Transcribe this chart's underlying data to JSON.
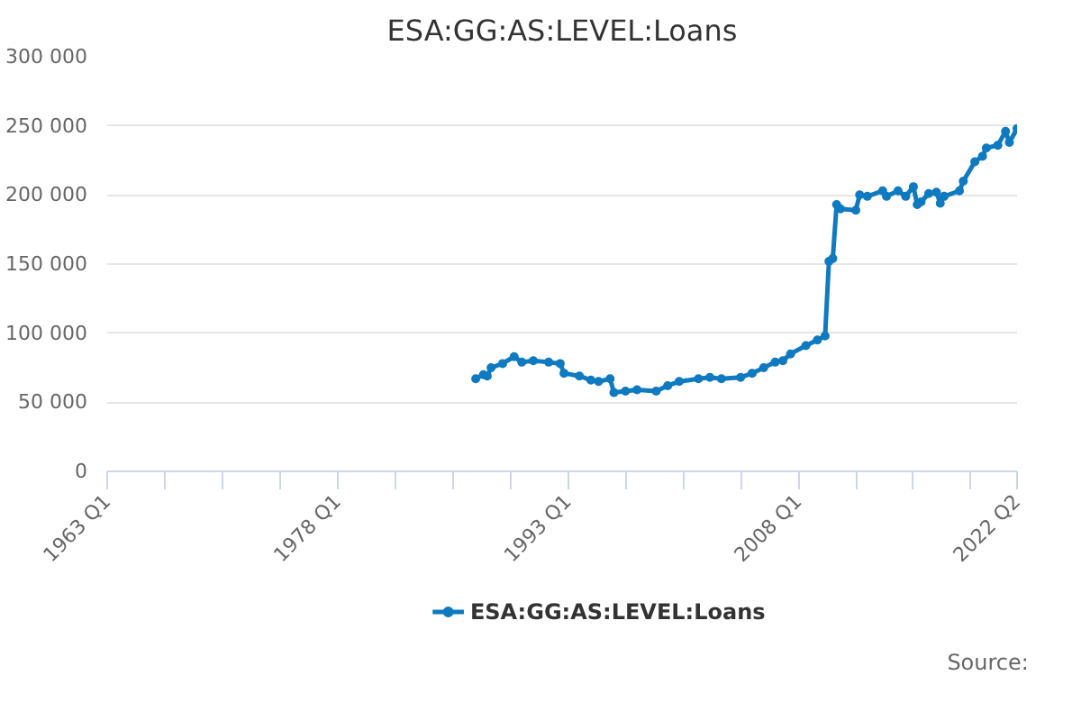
{
  "chart_data": {
    "type": "line",
    "title": "ESA:GG:AS:LEVEL:Loans",
    "x": [
      "1987-01",
      "1987-07",
      "1987-10",
      "1988-01",
      "1988-10",
      "1989-07",
      "1990-01",
      "1990-10",
      "1991-10",
      "1992-07",
      "1992-10",
      "1993-10",
      "1994-07",
      "1995-01",
      "1995-10",
      "1996-01",
      "1996-10",
      "1997-07",
      "1998-10",
      "1999-07",
      "2000-04",
      "2001-07",
      "2002-04",
      "2003-01",
      "2004-04",
      "2005-01",
      "2005-10",
      "2006-07",
      "2007-01",
      "2007-07",
      "2008-07",
      "2009-04",
      "2009-10",
      "2010-01",
      "2010-04",
      "2010-07",
      "2010-10",
      "2011-10",
      "2012-01",
      "2012-07",
      "2013-07",
      "2013-10",
      "2014-07",
      "2015-01",
      "2015-07",
      "2015-10",
      "2016-01",
      "2016-07",
      "2017-01",
      "2017-04",
      "2017-07",
      "2018-07",
      "2018-10",
      "2019-07",
      "2020-01",
      "2020-04",
      "2021-01",
      "2021-07",
      "2021-10",
      "2022-04"
    ],
    "series": [
      {
        "name": "ESA:GG:AS:LEVEL:Loans",
        "color": "#0f7ac0",
        "values": [
          67000,
          70000,
          69000,
          75000,
          78000,
          83000,
          79000,
          80000,
          79000,
          78000,
          71000,
          69000,
          66000,
          65000,
          67000,
          57000,
          58000,
          59000,
          58000,
          62000,
          65000,
          67000,
          68000,
          67000,
          68000,
          71000,
          75000,
          79000,
          80000,
          85000,
          91000,
          95000,
          98000,
          152000,
          154000,
          193000,
          190000,
          189000,
          200000,
          199000,
          203000,
          199000,
          203000,
          199000,
          206000,
          193000,
          195000,
          201000,
          202000,
          194000,
          199000,
          203000,
          210000,
          224000,
          228000,
          234000,
          236000,
          246000,
          238000,
          248000
        ]
      }
    ],
    "xlim": [
      "1963-01",
      "2022-04"
    ],
    "xticks": [
      {
        "value": "1963-01",
        "label": "1963 Q1"
      },
      {
        "value": "1966-10",
        "label": null
      },
      {
        "value": "1970-07",
        "label": null
      },
      {
        "value": "1974-04",
        "label": null
      },
      {
        "value": "1978-01",
        "label": "1978 Q1"
      },
      {
        "value": "1981-10",
        "label": null
      },
      {
        "value": "1985-07",
        "label": null
      },
      {
        "value": "1989-04",
        "label": null
      },
      {
        "value": "1993-01",
        "label": "1993 Q1"
      },
      {
        "value": "1996-10",
        "label": null
      },
      {
        "value": "2000-07",
        "label": null
      },
      {
        "value": "2004-04",
        "label": null
      },
      {
        "value": "2008-01",
        "label": "2008 Q1"
      },
      {
        "value": "2011-10",
        "label": null
      },
      {
        "value": "2015-07",
        "label": null
      },
      {
        "value": "2019-04",
        "label": null
      },
      {
        "value": "2022-04",
        "label": "2022 Q2"
      }
    ],
    "ylim": [
      0,
      300000
    ],
    "yticks": [
      0,
      {
        "value": 50000,
        "label": "50 000"
      },
      {
        "value": 100000,
        "label": "100 000"
      },
      {
        "value": 150000,
        "label": "150 000"
      },
      {
        "value": 200000,
        "label": "200 000"
      },
      {
        "value": 250000,
        "label": "250 000"
      },
      {
        "value": 300000,
        "label": "300 000"
      }
    ],
    "grid": "y",
    "legend": "bottom",
    "marker": "circle",
    "line_style": "solid",
    "annotations": [
      "Source:"
    ]
  }
}
